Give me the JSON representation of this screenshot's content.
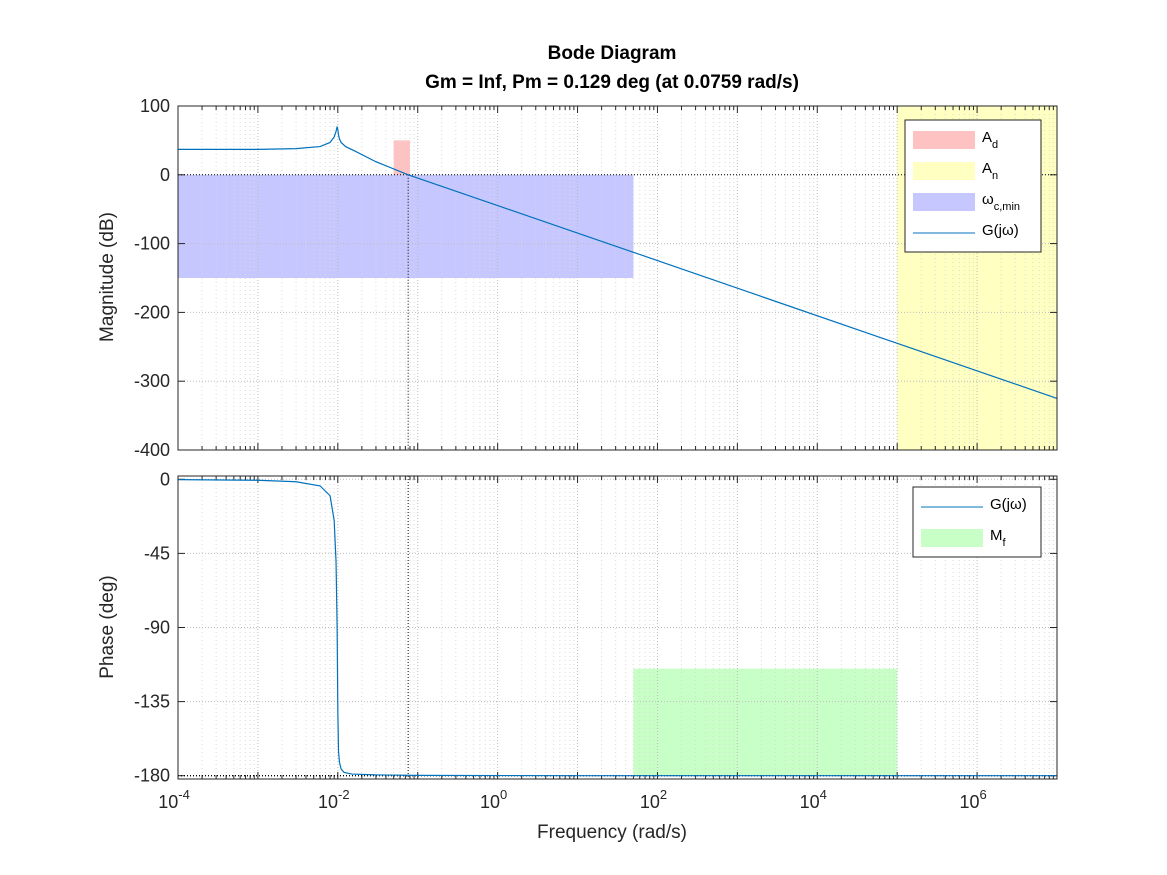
{
  "chart_data": {
    "type": "line",
    "title": "Bode Diagram",
    "subtitle": "Gm = Inf,  Pm = 0.129 deg (at 0.0759 rad/s)",
    "xlabel": "Frequency  (rad/s)",
    "x_scale": "log",
    "xlim": [
      0.0001,
      10000000
    ],
    "x_tick_labels": [
      "10",
      "10",
      "10",
      "10",
      "10",
      "10"
    ],
    "x_tick_exponents": [
      "-4",
      "-2",
      "0",
      "2",
      "4",
      "6"
    ],
    "grid": true,
    "colors": {
      "line": "#0072BD",
      "A_d": "#FFC2C2",
      "A_n": "#FFFFC2",
      "omega_c_min": "#C7C7FF",
      "M_f": "#C7FFC7"
    },
    "magnitude": {
      "ylabel": "Magnitude (dB)",
      "ylim": [
        -400,
        100
      ],
      "y_ticks": [
        "100",
        "0",
        "-100",
        "-200",
        "-300",
        "-400"
      ],
      "legend_position": "top-right",
      "legend": [
        {
          "base": "A",
          "sub": "d",
          "kind": "patch",
          "color_key": "A_d"
        },
        {
          "base": "A",
          "sub": "n",
          "kind": "patch",
          "color_key": "A_n"
        },
        {
          "base": "ω",
          "sub": "c,min",
          "kind": "patch",
          "color_key": "omega_c_min"
        },
        {
          "base": "G(jω)",
          "sub": "",
          "kind": "line",
          "color_key": "line"
        }
      ],
      "regions": [
        {
          "name": "A_d",
          "x": [
            0.05,
            0.08
          ],
          "y": [
            0,
            50
          ]
        },
        {
          "name": "A_n",
          "x": [
            100000,
            10000000
          ],
          "y": [
            -400,
            100
          ]
        },
        {
          "name": "omega_c_min",
          "x": [
            0.0001,
            50
          ],
          "y": [
            -150,
            0
          ]
        }
      ],
      "series": [
        {
          "name": "G(jω)",
          "x": [
            0.0001,
            0.001,
            0.003,
            0.006,
            0.008,
            0.009,
            0.0095,
            0.0098,
            0.01,
            0.0102,
            0.0105,
            0.011,
            0.0125,
            0.016,
            0.03,
            0.0759,
            1,
            50,
            100000,
            10000000
          ],
          "y": [
            37,
            37,
            38,
            41,
            47,
            55,
            63,
            70,
            66,
            58,
            52,
            47,
            41,
            35,
            19,
            0,
            -44.7,
            -112.6,
            -245,
            -325
          ]
        }
      ],
      "crossover_line": {
        "x": 0.0759
      }
    },
    "phase": {
      "ylabel": "Phase (deg)",
      "ylim": [
        -182,
        2
      ],
      "y_ticks": [
        "0",
        "-45",
        "-90",
        "-135",
        "-180"
      ],
      "legend_position": "top-right",
      "legend": [
        {
          "base": "G(jω)",
          "sub": "",
          "kind": "line",
          "color_key": "line"
        },
        {
          "base": "M",
          "sub": "f",
          "kind": "patch",
          "color_key": "M_f"
        }
      ],
      "regions": [
        {
          "name": "M_f",
          "x": [
            50,
            100000
          ],
          "y": [
            -180,
            -115
          ]
        }
      ],
      "series": [
        {
          "name": "G(jω)",
          "x": [
            0.0001,
            0.001,
            0.003,
            0.006,
            0.008,
            0.009,
            0.0095,
            0.0098,
            0.01,
            0.0102,
            0.0105,
            0.011,
            0.012,
            0.015,
            0.03,
            0.1,
            10,
            10000000
          ],
          "y": [
            -0.2,
            -0.6,
            -1.5,
            -4,
            -10,
            -25,
            -50,
            -90,
            -140,
            -165,
            -172,
            -176,
            -178,
            -179,
            -179.5,
            -179.8,
            -180,
            -180
          ]
        }
      ],
      "reference_line": {
        "y": -180
      }
    }
  }
}
